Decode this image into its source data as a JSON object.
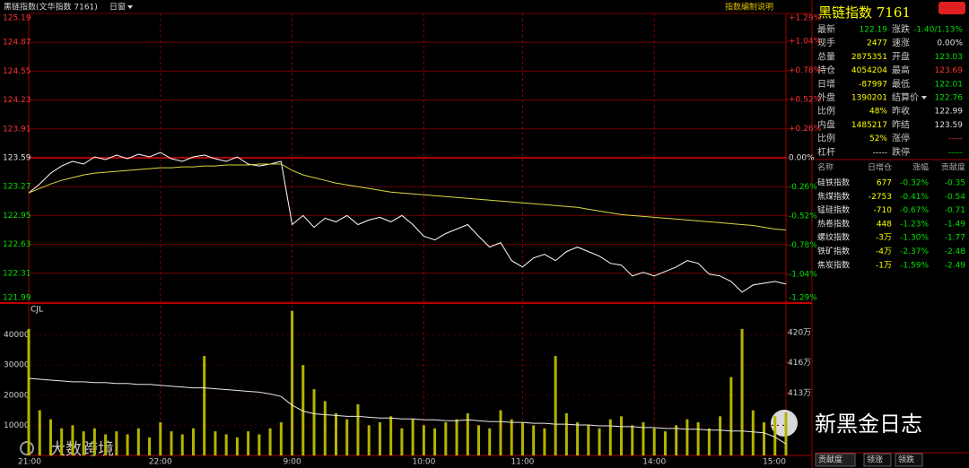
{
  "header": {
    "title": "黑链指数(文华指数 7161)",
    "period": "日窗",
    "note": "指数编制说明"
  },
  "chart_data": [
    {
      "type": "line",
      "x": [
        0,
        5,
        10,
        15,
        20,
        25,
        30,
        35,
        40,
        45,
        50,
        55,
        60,
        65,
        70,
        75,
        80,
        85,
        90,
        95,
        100,
        105,
        110,
        115,
        120,
        125,
        130,
        135,
        140,
        145,
        150,
        155,
        160,
        165,
        170,
        175,
        180,
        185,
        190,
        195,
        200,
        205,
        210,
        215,
        220,
        225,
        230,
        235,
        240,
        245,
        250,
        255,
        260,
        265,
        270,
        275,
        280,
        285,
        290,
        295,
        300,
        305,
        310,
        315,
        320,
        325,
        330,
        335,
        340,
        345
      ],
      "xlim": [
        0,
        345
      ],
      "xticks": [
        60,
        120,
        180,
        225,
        285
      ],
      "ylim": [
        121.99,
        125.19
      ],
      "yticks": [
        125.19,
        124.87,
        124.55,
        124.23,
        123.91,
        123.59,
        123.27,
        122.95,
        122.63,
        122.31,
        121.99
      ],
      "y2lim": [
        -1.29,
        1.29
      ],
      "y2ticks": [
        {
          "value": 1.29,
          "label": "+1.29%"
        },
        {
          "value": 1.04,
          "label": "+1.04%"
        },
        {
          "value": 0.78,
          "label": "+0.78%"
        },
        {
          "value": 0.52,
          "label": "+0.52%"
        },
        {
          "value": 0.26,
          "label": "+0.26%"
        },
        {
          "value": 0,
          "label": "0.00%"
        },
        {
          "value": -0.26,
          "label": "-0.26%"
        },
        {
          "value": -0.52,
          "label": "-0.52%"
        },
        {
          "value": -0.78,
          "label": "-0.78%"
        },
        {
          "value": -1.04,
          "label": "-1.04%"
        },
        {
          "value": -1.29,
          "label": "-1.29%"
        }
      ],
      "series": [
        {
          "color": "#ffffff",
          "values": [
            123.2,
            123.3,
            123.42,
            123.5,
            123.55,
            123.52,
            123.6,
            123.57,
            123.62,
            123.58,
            123.63,
            123.6,
            123.65,
            123.58,
            123.55,
            123.6,
            123.62,
            123.58,
            123.55,
            123.6,
            123.52,
            123.5,
            123.52,
            123.55,
            122.85,
            122.95,
            122.82,
            122.92,
            122.88,
            122.95,
            122.85,
            122.9,
            122.93,
            122.88,
            122.95,
            122.85,
            122.72,
            122.68,
            122.75,
            122.8,
            122.85,
            122.72,
            122.6,
            122.65,
            122.45,
            122.38,
            122.48,
            122.52,
            122.45,
            122.55,
            122.6,
            122.55,
            122.5,
            122.42,
            122.4,
            122.28,
            122.32,
            122.28,
            122.33,
            122.38,
            122.45,
            122.42,
            122.3,
            122.28,
            122.22,
            122.1,
            122.18,
            122.2,
            122.22,
            122.19
          ]
        },
        {
          "color": "#d8d840",
          "values": [
            123.2,
            123.25,
            123.3,
            123.34,
            123.37,
            123.4,
            123.42,
            123.43,
            123.44,
            123.45,
            123.46,
            123.47,
            123.48,
            123.48,
            123.49,
            123.49,
            123.5,
            123.5,
            123.51,
            123.51,
            123.51,
            123.52,
            123.52,
            123.52,
            123.45,
            123.4,
            123.37,
            123.34,
            123.31,
            123.29,
            123.27,
            123.25,
            123.23,
            123.21,
            123.2,
            123.19,
            123.18,
            123.17,
            123.16,
            123.15,
            123.14,
            123.13,
            123.12,
            123.11,
            123.1,
            123.09,
            123.08,
            123.07,
            123.06,
            123.05,
            123.04,
            123.02,
            123.0,
            122.98,
            122.96,
            122.95,
            122.94,
            122.93,
            122.92,
            122.91,
            122.9,
            122.89,
            122.88,
            122.87,
            122.86,
            122.85,
            122.84,
            122.82,
            122.8,
            122.79
          ]
        }
      ]
    },
    {
      "type": "bar",
      "title": "CJL",
      "x": [
        0,
        5,
        10,
        15,
        20,
        25,
        30,
        35,
        40,
        45,
        50,
        55,
        60,
        65,
        70,
        75,
        80,
        85,
        90,
        95,
        100,
        105,
        110,
        115,
        120,
        125,
        130,
        135,
        140,
        145,
        150,
        155,
        160,
        165,
        170,
        175,
        180,
        185,
        190,
        195,
        200,
        205,
        210,
        215,
        220,
        225,
        230,
        235,
        240,
        245,
        250,
        255,
        260,
        265,
        270,
        275,
        280,
        285,
        290,
        295,
        300,
        305,
        310,
        315,
        320,
        325,
        330,
        335,
        340,
        345
      ],
      "xlim": [
        0,
        345
      ],
      "xticks": [
        {
          "value": 0,
          "label": "21:00"
        },
        {
          "value": 60,
          "label": "22:00"
        },
        {
          "value": 120,
          "label": "9:00"
        },
        {
          "value": 180,
          "label": "10:00"
        },
        {
          "value": 225,
          "label": "11:00"
        },
        {
          "value": 285,
          "label": "14:00"
        },
        {
          "value": 345,
          "label": "15:00"
        }
      ],
      "ylim": [
        0,
        50000
      ],
      "yticks": [
        10000,
        20000,
        30000,
        40000
      ],
      "y2lim": [
        4056700,
        4231200
      ],
      "y2ticks": [
        {
          "value": 4199000,
          "label": "420万"
        },
        {
          "value": 4164000,
          "label": "416万"
        },
        {
          "value": 4129000,
          "label": "413万"
        }
      ],
      "series": [
        {
          "color": "#b4b400",
          "values": [
            42000,
            15000,
            12000,
            9000,
            10000,
            8000,
            9000,
            7000,
            8000,
            7000,
            9000,
            6000,
            11000,
            8000,
            7000,
            9000,
            33000,
            8000,
            7000,
            6000,
            8000,
            7000,
            9000,
            11000,
            48000,
            30000,
            22000,
            18000,
            14000,
            12000,
            17000,
            10000,
            11000,
            13000,
            9000,
            12000,
            10000,
            9000,
            11000,
            12000,
            14000,
            10000,
            9000,
            15000,
            12000,
            11000,
            10000,
            9000,
            33000,
            14000,
            11000,
            10000,
            9000,
            12000,
            13000,
            10000,
            11000,
            9000,
            8000,
            10000,
            12000,
            11000,
            9000,
            13000,
            26000,
            42000,
            15000,
            11000,
            13000,
            14000
          ]
        },
        {
          "color": "#e8e8e8",
          "axis": "y2",
          "values": [
            4146000,
            4145000,
            4144000,
            4143000,
            4142000,
            4142000,
            4141000,
            4141000,
            4140000,
            4140000,
            4139000,
            4139000,
            4138000,
            4137000,
            4136000,
            4135000,
            4135000,
            4134000,
            4133000,
            4132000,
            4131000,
            4130000,
            4128000,
            4125000,
            4115000,
            4108000,
            4105000,
            4104000,
            4103000,
            4102000,
            4102000,
            4101000,
            4100000,
            4100000,
            4099000,
            4099000,
            4098000,
            4098000,
            4097000,
            4097000,
            4098000,
            4097000,
            4096000,
            4096000,
            4095000,
            4095000,
            4094000,
            4094000,
            4093000,
            4093000,
            4092000,
            4092000,
            4091000,
            4091000,
            4090000,
            4090000,
            4089000,
            4089000,
            4088000,
            4088000,
            4087000,
            4087000,
            4086000,
            4086000,
            4085000,
            4085000,
            4084000,
            4083000,
            4078000,
            4070000
          ]
        }
      ]
    }
  ],
  "quote": {
    "title": "黑链指数 7161",
    "rows": [
      [
        "最新",
        "122.19",
        "涨跌",
        "-1.40/1.13%"
      ],
      [
        "现手",
        "2477",
        "速涨",
        "0.00%"
      ],
      [
        "总量",
        "2875351",
        "开盘",
        "123.03"
      ],
      [
        "持仓",
        "4054204",
        "最高",
        "123.69"
      ],
      [
        "日增",
        "-87997",
        "最低",
        "122.01"
      ],
      [
        "外盘",
        "1390201",
        "结算价",
        "122.76"
      ],
      [
        "比例",
        "48%",
        "昨收",
        "122.99"
      ],
      [
        "内盘",
        "1485217",
        "昨结",
        "123.59"
      ],
      [
        "比例",
        "52%",
        "涨停",
        "-----"
      ],
      [
        "杠杆",
        "-----",
        "跌停",
        "-----"
      ]
    ],
    "value_colors": [
      [
        "#00e000",
        "#00e000"
      ],
      [
        "#ffff00",
        "#e0e0e0"
      ],
      [
        "#ffff00",
        "#00e000"
      ],
      [
        "#ffff00",
        "#ff3232"
      ],
      [
        "#ffff00",
        "#00e000"
      ],
      [
        "#ffff00",
        "#00e000"
      ],
      [
        "#ffff00",
        "#e0e0e0"
      ],
      [
        "#ffff00",
        "#e0e0e0"
      ],
      [
        "#ffff00",
        "#ff3232"
      ],
      [
        "#e0e0e0",
        "#00e000"
      ]
    ]
  },
  "sectors": {
    "header": [
      "名称",
      "日增仓",
      "涨幅",
      "贡献度"
    ],
    "colors": [
      "#e0e0e0",
      "#ffff00",
      "#00e000",
      "#00e000"
    ],
    "rows": [
      [
        "硅铁指数",
        "677",
        "-0.32%",
        "-0.35"
      ],
      [
        "焦煤指数",
        "-2753",
        "-0.41%",
        "-0.54"
      ],
      [
        "锰硅指数",
        "-710",
        "-0.67%",
        "-0.71"
      ],
      [
        "热卷指数",
        "448",
        "-1.23%",
        "-1.49"
      ],
      [
        "螺纹指数",
        "-3万",
        "-1.30%",
        "-1.77"
      ],
      [
        "铁矿指数",
        "-4万",
        "-2.37%",
        "-2.48"
      ],
      [
        "焦炭指数",
        "-1万",
        "-1.59%",
        "-2.49"
      ]
    ],
    "tabs": [
      "贡献度",
      "领涨",
      "领跌"
    ]
  },
  "watermarks": [
    "大数跨境",
    "新黑金日志"
  ]
}
